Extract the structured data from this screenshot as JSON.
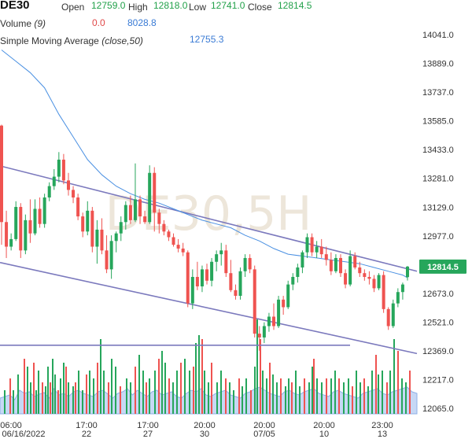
{
  "header": {
    "symbol": "DE30",
    "open_label": "Open",
    "open_value": "12759.0",
    "high_label": "High",
    "high_value": "12818.0",
    "low_label": "Low",
    "low_value": "12741.0",
    "close_label": "Close",
    "close_value": "12814.5",
    "volume_label": "Volume",
    "volume_param": "(9)",
    "volume_change": "0.0",
    "volume_value": "8028.8",
    "sma_label": "Simple Moving Average",
    "sma_param": "(close,50)",
    "sma_value": "12755.3"
  },
  "watermark": "DE30,5H",
  "last_price_label": "12814.5",
  "colors": {
    "up": "#26a65b",
    "down": "#ef5350",
    "sma": "#4a90e2",
    "channel": "#7b79bd",
    "volume_area": "#c6d8f5",
    "price_tag": "#26a65b"
  },
  "chart_data": {
    "type": "candlestick",
    "interval": "5H",
    "symbol": "DE30",
    "y_ticks": [
      "14041.0",
      "13889.0",
      "13737.0",
      "13585.0",
      "13433.0",
      "13281.0",
      "13129.0",
      "12977.0",
      "12825.0",
      "12673.0",
      "12521.0",
      "12369.0",
      "12217.0",
      "12065.0"
    ],
    "x_ticks": [
      {
        "top": "06:00",
        "bottom": "06/16/2022"
      },
      {
        "top": "17:00",
        "bottom": "22"
      },
      {
        "top": "17:00",
        "bottom": "27"
      },
      {
        "top": "20:00",
        "bottom": "30"
      },
      {
        "top": "20:00",
        "bottom": "07/05"
      },
      {
        "top": "20:00",
        "bottom": "10"
      },
      {
        "top": "23:00",
        "bottom": "13"
      }
    ],
    "ylim": [
      12000,
      14100
    ],
    "candles": [
      [
        13560,
        13565,
        12930,
        13050
      ],
      [
        13050,
        13110,
        12860,
        12920
      ],
      [
        12920,
        12990,
        12900,
        12960
      ],
      [
        12960,
        13160,
        12950,
        13130
      ],
      [
        13130,
        13150,
        12860,
        12900
      ],
      [
        12900,
        13090,
        12880,
        13060
      ],
      [
        13060,
        13170,
        12940,
        12990
      ],
      [
        12990,
        13170,
        12980,
        13120
      ],
      [
        13120,
        13180,
        13020,
        13040
      ],
      [
        13040,
        13200,
        13020,
        13180
      ],
      [
        13180,
        13260,
        13160,
        13240
      ],
      [
        13240,
        13330,
        13220,
        13290
      ],
      [
        13290,
        13420,
        13260,
        13380
      ],
      [
        13380,
        13410,
        13250,
        13270
      ],
      [
        13270,
        13310,
        13190,
        13220
      ],
      [
        13220,
        13240,
        13150,
        13180
      ],
      [
        13180,
        13200,
        13060,
        13080
      ],
      [
        13080,
        13100,
        12970,
        13000
      ],
      [
        13000,
        13160,
        12980,
        13110
      ],
      [
        13110,
        13130,
        12890,
        12920
      ],
      [
        12920,
        13060,
        12830,
        13010
      ],
      [
        13010,
        13070,
        12880,
        12900
      ],
      [
        12900,
        12980,
        12780,
        12800
      ],
      [
        12800,
        12980,
        12750,
        12950
      ],
      [
        12950,
        13000,
        12890,
        12990
      ],
      [
        12990,
        13080,
        12950,
        13050
      ],
      [
        13050,
        13160,
        13010,
        13140
      ],
      [
        13140,
        13190,
        13040,
        13060
      ],
      [
        13060,
        13360,
        13050,
        13170
      ],
      [
        13170,
        13190,
        13040,
        13080
      ],
      [
        13080,
        13110,
        13040,
        13050
      ],
      [
        13050,
        13350,
        13040,
        13310
      ],
      [
        13310,
        13340,
        13000,
        13100
      ],
      [
        13100,
        13120,
        12990,
        13040
      ],
      [
        13040,
        13060,
        12980,
        13000
      ],
      [
        13000,
        13010,
        12950,
        12970
      ],
      [
        12970,
        12990,
        12920,
        12930
      ],
      [
        12930,
        12960,
        12890,
        12910
      ],
      [
        12910,
        12940,
        12870,
        12890
      ],
      [
        12890,
        12900,
        12600,
        12620
      ],
      [
        12620,
        12800,
        12590,
        12760
      ],
      [
        12760,
        12840,
        12690,
        12710
      ],
      [
        12710,
        12820,
        12680,
        12800
      ],
      [
        12800,
        12830,
        12720,
        12740
      ],
      [
        12740,
        12860,
        12710,
        12840
      ],
      [
        12840,
        12900,
        12790,
        12880
      ],
      [
        12880,
        12940,
        12820,
        12900
      ],
      [
        12900,
        12930,
        12760,
        12780
      ],
      [
        12780,
        12850,
        12680,
        12690
      ],
      [
        12690,
        12720,
        12640,
        12660
      ],
      [
        12660,
        12810,
        12640,
        12790
      ],
      [
        12790,
        12880,
        12760,
        12860
      ],
      [
        12860,
        12880,
        12780,
        12800
      ],
      [
        12800,
        12820,
        12440,
        12460
      ],
      [
        12460,
        12500,
        12370,
        12440
      ],
      [
        12440,
        12520,
        12410,
        12500
      ],
      [
        12500,
        12570,
        12470,
        12550
      ],
      [
        12550,
        12620,
        12480,
        12500
      ],
      [
        12500,
        12660,
        12490,
        12640
      ],
      [
        12640,
        12660,
        12560,
        12600
      ],
      [
        12600,
        12740,
        12590,
        12720
      ],
      [
        12720,
        12780,
        12690,
        12760
      ],
      [
        12760,
        12830,
        12730,
        12810
      ],
      [
        12810,
        12900,
        12780,
        12890
      ],
      [
        12890,
        12990,
        12860,
        12970
      ],
      [
        12970,
        12990,
        12870,
        12890
      ],
      [
        12890,
        12950,
        12860,
        12920
      ],
      [
        12920,
        12960,
        12860,
        12880
      ],
      [
        12880,
        12920,
        12820,
        12850
      ],
      [
        12850,
        12890,
        12770,
        12790
      ],
      [
        12790,
        12880,
        12780,
        12860
      ],
      [
        12860,
        12880,
        12760,
        12780
      ],
      [
        12780,
        12800,
        12700,
        12720
      ],
      [
        12720,
        12900,
        12710,
        12870
      ],
      [
        12870,
        12890,
        12800,
        12810
      ],
      [
        12810,
        12840,
        12760,
        12780
      ],
      [
        12780,
        12800,
        12740,
        12760
      ],
      [
        12760,
        12790,
        12720,
        12750
      ],
      [
        12750,
        12770,
        12680,
        12700
      ],
      [
        12700,
        12780,
        12690,
        12770
      ],
      [
        12770,
        12790,
        12570,
        12590
      ],
      [
        12590,
        12600,
        12480,
        12500
      ],
      [
        12500,
        12640,
        12490,
        12620
      ],
      [
        12620,
        12700,
        12600,
        12680
      ],
      [
        12680,
        12730,
        12640,
        12720
      ],
      [
        12759,
        12818,
        12741,
        12814.5
      ]
    ],
    "sma_points": [
      [
        0,
        13960
      ],
      [
        3,
        13900
      ],
      [
        6,
        13840
      ],
      [
        9,
        13760
      ],
      [
        12,
        13620
      ],
      [
        15,
        13500
      ],
      [
        18,
        13380
      ],
      [
        21,
        13300
      ],
      [
        24,
        13240
      ],
      [
        27,
        13200
      ],
      [
        30,
        13170
      ],
      [
        33,
        13150
      ],
      [
        36,
        13120
      ],
      [
        39,
        13090
      ],
      [
        42,
        13060
      ],
      [
        45,
        13040
      ],
      [
        48,
        13020
      ],
      [
        51,
        12980
      ],
      [
        54,
        12950
      ],
      [
        57,
        12910
      ],
      [
        60,
        12880
      ],
      [
        63,
        12870
      ],
      [
        66,
        12860
      ],
      [
        69,
        12850
      ],
      [
        72,
        12840
      ],
      [
        75,
        12830
      ],
      [
        78,
        12810
      ],
      [
        81,
        12790
      ],
      [
        84,
        12770
      ],
      [
        85,
        12755.3
      ]
    ],
    "volume_area": [
      20,
      22,
      24,
      18,
      30,
      26,
      28,
      22,
      25,
      27,
      20,
      32,
      24,
      26,
      22,
      28,
      30,
      26,
      24,
      22,
      28,
      30,
      25,
      20,
      26,
      28,
      32,
      24,
      30,
      26,
      22,
      28,
      30,
      24,
      26,
      28,
      22,
      20,
      26,
      30,
      28,
      32,
      24,
      22,
      26,
      28,
      30,
      24,
      22,
      20,
      26,
      28,
      32,
      34,
      30,
      26,
      24,
      22,
      28,
      30,
      26,
      24,
      28,
      30,
      32,
      26,
      24,
      22,
      28,
      30,
      26,
      24,
      22,
      20,
      26,
      28,
      30,
      32,
      26,
      24,
      28,
      30,
      32,
      34,
      28,
      26
    ],
    "volume_bars": [
      [
        5,
        30
      ],
      [
        12,
        45
      ],
      [
        16,
        30
      ],
      [
        22,
        50
      ],
      [
        30,
        70
      ],
      [
        34,
        60
      ],
      [
        38,
        40
      ],
      [
        42,
        65
      ],
      [
        45,
        30
      ],
      [
        48,
        55
      ],
      [
        53,
        40
      ],
      [
        57,
        35
      ],
      [
        60,
        60
      ],
      [
        63,
        40
      ],
      [
        66,
        70
      ],
      [
        69,
        50
      ],
      [
        73,
        30
      ],
      [
        76,
        45
      ],
      [
        80,
        65
      ],
      [
        83,
        60
      ],
      [
        86,
        40
      ],
      [
        92,
        35
      ],
      [
        95,
        40
      ],
      [
        99,
        55
      ],
      [
        104,
        30
      ],
      [
        109,
        50
      ],
      [
        113,
        55
      ],
      [
        118,
        45
      ],
      [
        123,
        65
      ],
      [
        127,
        95
      ],
      [
        131,
        55
      ],
      [
        137,
        40
      ],
      [
        141,
        70
      ],
      [
        146,
        60
      ],
      [
        152,
        35
      ],
      [
        160,
        45
      ],
      [
        165,
        40
      ],
      [
        171,
        60
      ],
      [
        176,
        75
      ],
      [
        181,
        55
      ],
      [
        185,
        40
      ],
      [
        189,
        45
      ],
      [
        196,
        55
      ],
      [
        201,
        70
      ],
      [
        205,
        80
      ],
      [
        209,
        65
      ],
      [
        214,
        45
      ],
      [
        219,
        40
      ],
      [
        224,
        55
      ],
      [
        229,
        65
      ],
      [
        234,
        70
      ],
      [
        240,
        55
      ],
      [
        245,
        60
      ],
      [
        248,
        90
      ],
      [
        252,
        100
      ],
      [
        256,
        95
      ],
      [
        259,
        55
      ],
      [
        264,
        40
      ],
      [
        268,
        65
      ],
      [
        275,
        40
      ],
      [
        280,
        55
      ],
      [
        286,
        45
      ],
      [
        291,
        40
      ],
      [
        296,
        30
      ],
      [
        303,
        45
      ],
      [
        307,
        35
      ],
      [
        312,
        45
      ],
      [
        318,
        30
      ],
      [
        323,
        60
      ],
      [
        326,
        120
      ],
      [
        330,
        95
      ],
      [
        333,
        55
      ],
      [
        338,
        45
      ],
      [
        342,
        65
      ],
      [
        346,
        50
      ],
      [
        351,
        40
      ],
      [
        356,
        45
      ],
      [
        362,
        35
      ],
      [
        366,
        45
      ],
      [
        370,
        40
      ],
      [
        375,
        55
      ],
      [
        380,
        35
      ],
      [
        386,
        45
      ],
      [
        392,
        40
      ],
      [
        396,
        60
      ],
      [
        398,
        70
      ],
      [
        402,
        45
      ],
      [
        408,
        40
      ],
      [
        414,
        45
      ],
      [
        420,
        45
      ],
      [
        425,
        55
      ],
      [
        430,
        45
      ],
      [
        436,
        40
      ],
      [
        442,
        45
      ],
      [
        447,
        35
      ],
      [
        452,
        55
      ],
      [
        457,
        40
      ],
      [
        462,
        45
      ],
      [
        467,
        35
      ],
      [
        472,
        55
      ],
      [
        477,
        75
      ],
      [
        480,
        50
      ],
      [
        485,
        55
      ],
      [
        491,
        40
      ],
      [
        495,
        55
      ],
      [
        500,
        95
      ],
      [
        505,
        80
      ],
      [
        510,
        45
      ],
      [
        515,
        40
      ],
      [
        520,
        55
      ]
    ],
    "trendlines": [
      {
        "x1": 0,
        "y1": 13347,
        "x2": 530,
        "y2": 12790
      },
      {
        "x1": 0,
        "y1": 12836,
        "x2": 530,
        "y2": 12355
      },
      {
        "x1": 0,
        "y1": 12399,
        "x2": 445,
        "y2": 12399
      }
    ]
  }
}
